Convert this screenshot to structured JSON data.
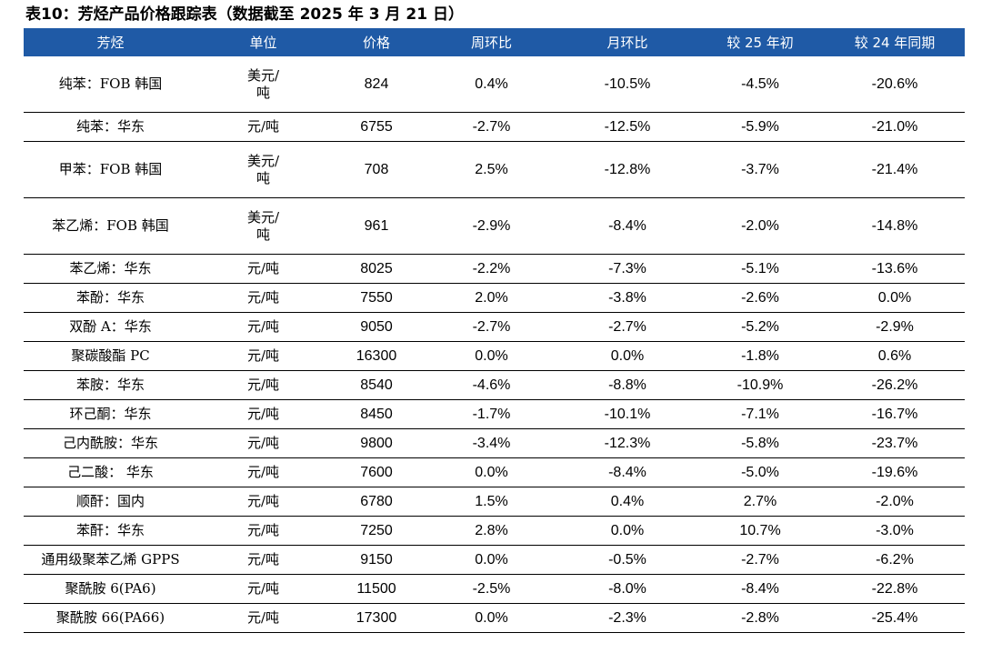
{
  "caption": "表10：芳烃产品价格跟踪表（数据截至 2025 年 3 月 21 日）",
  "table": {
    "headers": [
      "芳烃",
      "单位",
      "价格",
      "周环比",
      "月环比",
      "较 25 年初",
      "较 24 年同期"
    ],
    "rows": [
      {
        "name": "纯苯：FOB 韩国",
        "unit": [
          "美元/",
          "吨"
        ],
        "price": "824",
        "wow": "0.4%",
        "mom": "-10.5%",
        "ytd": "-4.5%",
        "yoy": "-20.6%",
        "tall": true
      },
      {
        "name": "纯苯：华东",
        "unit": [
          "元/吨"
        ],
        "price": "6755",
        "wow": "-2.7%",
        "mom": "-12.5%",
        "ytd": "-5.9%",
        "yoy": "-21.0%",
        "tall": false
      },
      {
        "name": "甲苯：FOB 韩国",
        "unit": [
          "美元/",
          "吨"
        ],
        "price": "708",
        "wow": "2.5%",
        "mom": "-12.8%",
        "ytd": "-3.7%",
        "yoy": "-21.4%",
        "tall": true
      },
      {
        "name": "苯乙烯：FOB 韩国",
        "unit": [
          "美元/",
          "吨"
        ],
        "price": "961",
        "wow": "-2.9%",
        "mom": "-8.4%",
        "ytd": "-2.0%",
        "yoy": "-14.8%",
        "tall": true
      },
      {
        "name": "苯乙烯：华东",
        "unit": [
          "元/吨"
        ],
        "price": "8025",
        "wow": "-2.2%",
        "mom": "-7.3%",
        "ytd": "-5.1%",
        "yoy": "-13.6%",
        "tall": false
      },
      {
        "name": "苯酚：华东",
        "unit": [
          "元/吨"
        ],
        "price": "7550",
        "wow": "2.0%",
        "mom": "-3.8%",
        "ytd": "-2.6%",
        "yoy": "0.0%",
        "tall": false
      },
      {
        "name": "双酚 A：华东",
        "unit": [
          "元/吨"
        ],
        "price": "9050",
        "wow": "-2.7%",
        "mom": "-2.7%",
        "ytd": "-5.2%",
        "yoy": "-2.9%",
        "tall": false
      },
      {
        "name": "聚碳酸酯 PC",
        "unit": [
          "元/吨"
        ],
        "price": "16300",
        "wow": "0.0%",
        "mom": "0.0%",
        "ytd": "-1.8%",
        "yoy": "0.6%",
        "tall": false
      },
      {
        "name": "苯胺：华东",
        "unit": [
          "元/吨"
        ],
        "price": "8540",
        "wow": "-4.6%",
        "mom": "-8.8%",
        "ytd": "-10.9%",
        "yoy": "-26.2%",
        "tall": false
      },
      {
        "name": "环己酮：华东",
        "unit": [
          "元/吨"
        ],
        "price": "8450",
        "wow": "-1.7%",
        "mom": "-10.1%",
        "ytd": "-7.1%",
        "yoy": "-16.7%",
        "tall": false
      },
      {
        "name": "己内酰胺：华东",
        "unit": [
          "元/吨"
        ],
        "price": "9800",
        "wow": "-3.4%",
        "mom": "-12.3%",
        "ytd": "-5.8%",
        "yoy": "-23.7%",
        "tall": false
      },
      {
        "name": "己二酸： 华东",
        "unit": [
          "元/吨"
        ],
        "price": "7600",
        "wow": "0.0%",
        "mom": "-8.4%",
        "ytd": "-5.0%",
        "yoy": "-19.6%",
        "tall": false
      },
      {
        "name": "顺酐：国内",
        "unit": [
          "元/吨"
        ],
        "price": "6780",
        "wow": "1.5%",
        "mom": "0.4%",
        "ytd": "2.7%",
        "yoy": "-2.0%",
        "tall": false
      },
      {
        "name": "苯酐：华东",
        "unit": [
          "元/吨"
        ],
        "price": "7250",
        "wow": "2.8%",
        "mom": "0.0%",
        "ytd": "10.7%",
        "yoy": "-3.0%",
        "tall": false
      },
      {
        "name": "通用级聚苯乙烯 GPPS",
        "unit": [
          "元/吨"
        ],
        "price": "9150",
        "wow": "0.0%",
        "mom": "-0.5%",
        "ytd": "-2.7%",
        "yoy": "-6.2%",
        "tall": false
      },
      {
        "name": "聚酰胺 6(PA6)",
        "unit": [
          "元/吨"
        ],
        "price": "11500",
        "wow": "-2.5%",
        "mom": "-8.0%",
        "ytd": "-8.4%",
        "yoy": "-22.8%",
        "tall": false
      },
      {
        "name": "聚酰胺 66(PA66)",
        "unit": [
          "元/吨"
        ],
        "price": "17300",
        "wow": "0.0%",
        "mom": "-2.3%",
        "ytd": "-2.8%",
        "yoy": "-25.4%",
        "tall": false
      }
    ]
  },
  "colors": {
    "header_bg": "#1f5aa6",
    "header_text": "#ffffff"
  }
}
